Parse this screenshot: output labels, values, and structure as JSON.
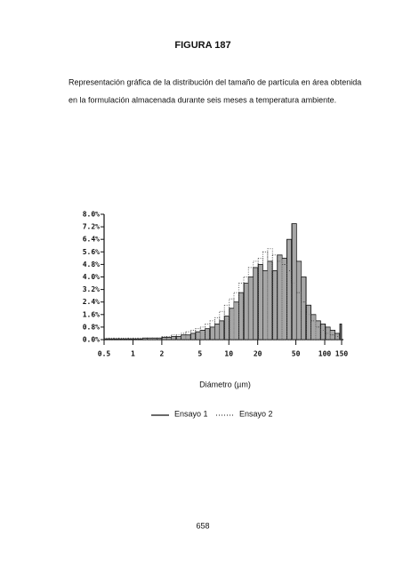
{
  "chart_data": {
    "type": "histogram",
    "title": "FIGURA 187",
    "subtitle": [
      "Representación gráfica de la distribución del tamaño de partícula en área obtenida",
      "en la formulación almacenada durante seis meses a temperatura ambiente."
    ],
    "x_label": "Diámetro (µm)",
    "x_scale": "log",
    "xlim": [
      0.5,
      150
    ],
    "xticks": [
      0.5,
      1,
      2,
      5,
      10,
      20,
      50,
      100,
      150
    ],
    "ylim": [
      0,
      8
    ],
    "yticks": [
      {
        "value": 0,
        "label": "0.0%"
      },
      {
        "value": 0.8,
        "label": "0.8%"
      },
      {
        "value": 1.6,
        "label": "1.6%"
      },
      {
        "value": 2.4,
        "label": "2.4%"
      },
      {
        "value": 3.2,
        "label": "3.2%"
      },
      {
        "value": 4,
        "label": "4.0%"
      },
      {
        "value": 4.8,
        "label": "4.8%"
      },
      {
        "value": 5.6,
        "label": "5.6%"
      },
      {
        "value": 6.4,
        "label": "6.4%"
      },
      {
        "value": 7.2,
        "label": "7.2%"
      },
      {
        "value": 8,
        "label": "8.0%"
      }
    ],
    "grid": false,
    "bins": [
      0.5,
      0.56,
      0.63,
      0.71,
      0.79,
      0.89,
      1,
      1.12,
      1.26,
      1.41,
      1.59,
      1.78,
      2,
      2.24,
      2.52,
      2.83,
      3.17,
      3.56,
      4,
      4.49,
      5.04,
      5.66,
      6.35,
      7.13,
      8,
      8.98,
      10.1,
      11.3,
      12.7,
      14.3,
      16,
      18,
      20.2,
      22.6,
      25.4,
      28.5,
      32,
      35.9,
      40.3,
      45.3,
      50.8,
      57,
      64,
      71.8,
      80.6,
      90.5,
      101.6,
      114,
      128,
      143.7,
      150
    ],
    "series": [
      {
        "name": "Ensayo 1",
        "color": "#111111",
        "style": "solid",
        "values": [
          0.05,
          0.05,
          0.05,
          0.05,
          0.05,
          0.05,
          0.05,
          0.05,
          0.1,
          0.1,
          0.1,
          0.1,
          0.15,
          0.15,
          0.2,
          0.2,
          0.3,
          0.3,
          0.4,
          0.5,
          0.6,
          0.7,
          0.8,
          1.0,
          1.2,
          1.5,
          2.0,
          2.4,
          3.0,
          3.6,
          4.0,
          4.6,
          4.8,
          4.4,
          5.0,
          4.4,
          5.4,
          5.2,
          6.4,
          7.4,
          5.0,
          4.0,
          2.2,
          1.6,
          1.2,
          1.0,
          0.8,
          0.6,
          0.4,
          1.0
        ]
      },
      {
        "name": "Ensayo 2",
        "color": "#444444",
        "style": "dotted",
        "values": [
          0.1,
          0.1,
          0.1,
          0.1,
          0.1,
          0.1,
          0.1,
          0.1,
          0.1,
          0.1,
          0.1,
          0.1,
          0.2,
          0.2,
          0.3,
          0.3,
          0.4,
          0.5,
          0.6,
          0.7,
          0.8,
          1.0,
          1.2,
          1.4,
          1.8,
          2.2,
          2.6,
          3.0,
          3.6,
          4.0,
          4.6,
          5.0,
          5.2,
          5.6,
          5.8,
          5.4,
          5.0,
          4.8,
          4.4,
          3.6,
          3.0,
          2.4,
          1.6,
          1.2,
          0.8,
          0.6,
          0.4,
          0.3,
          0.2,
          0.2
        ]
      }
    ]
  },
  "page": {
    "number": "658"
  }
}
